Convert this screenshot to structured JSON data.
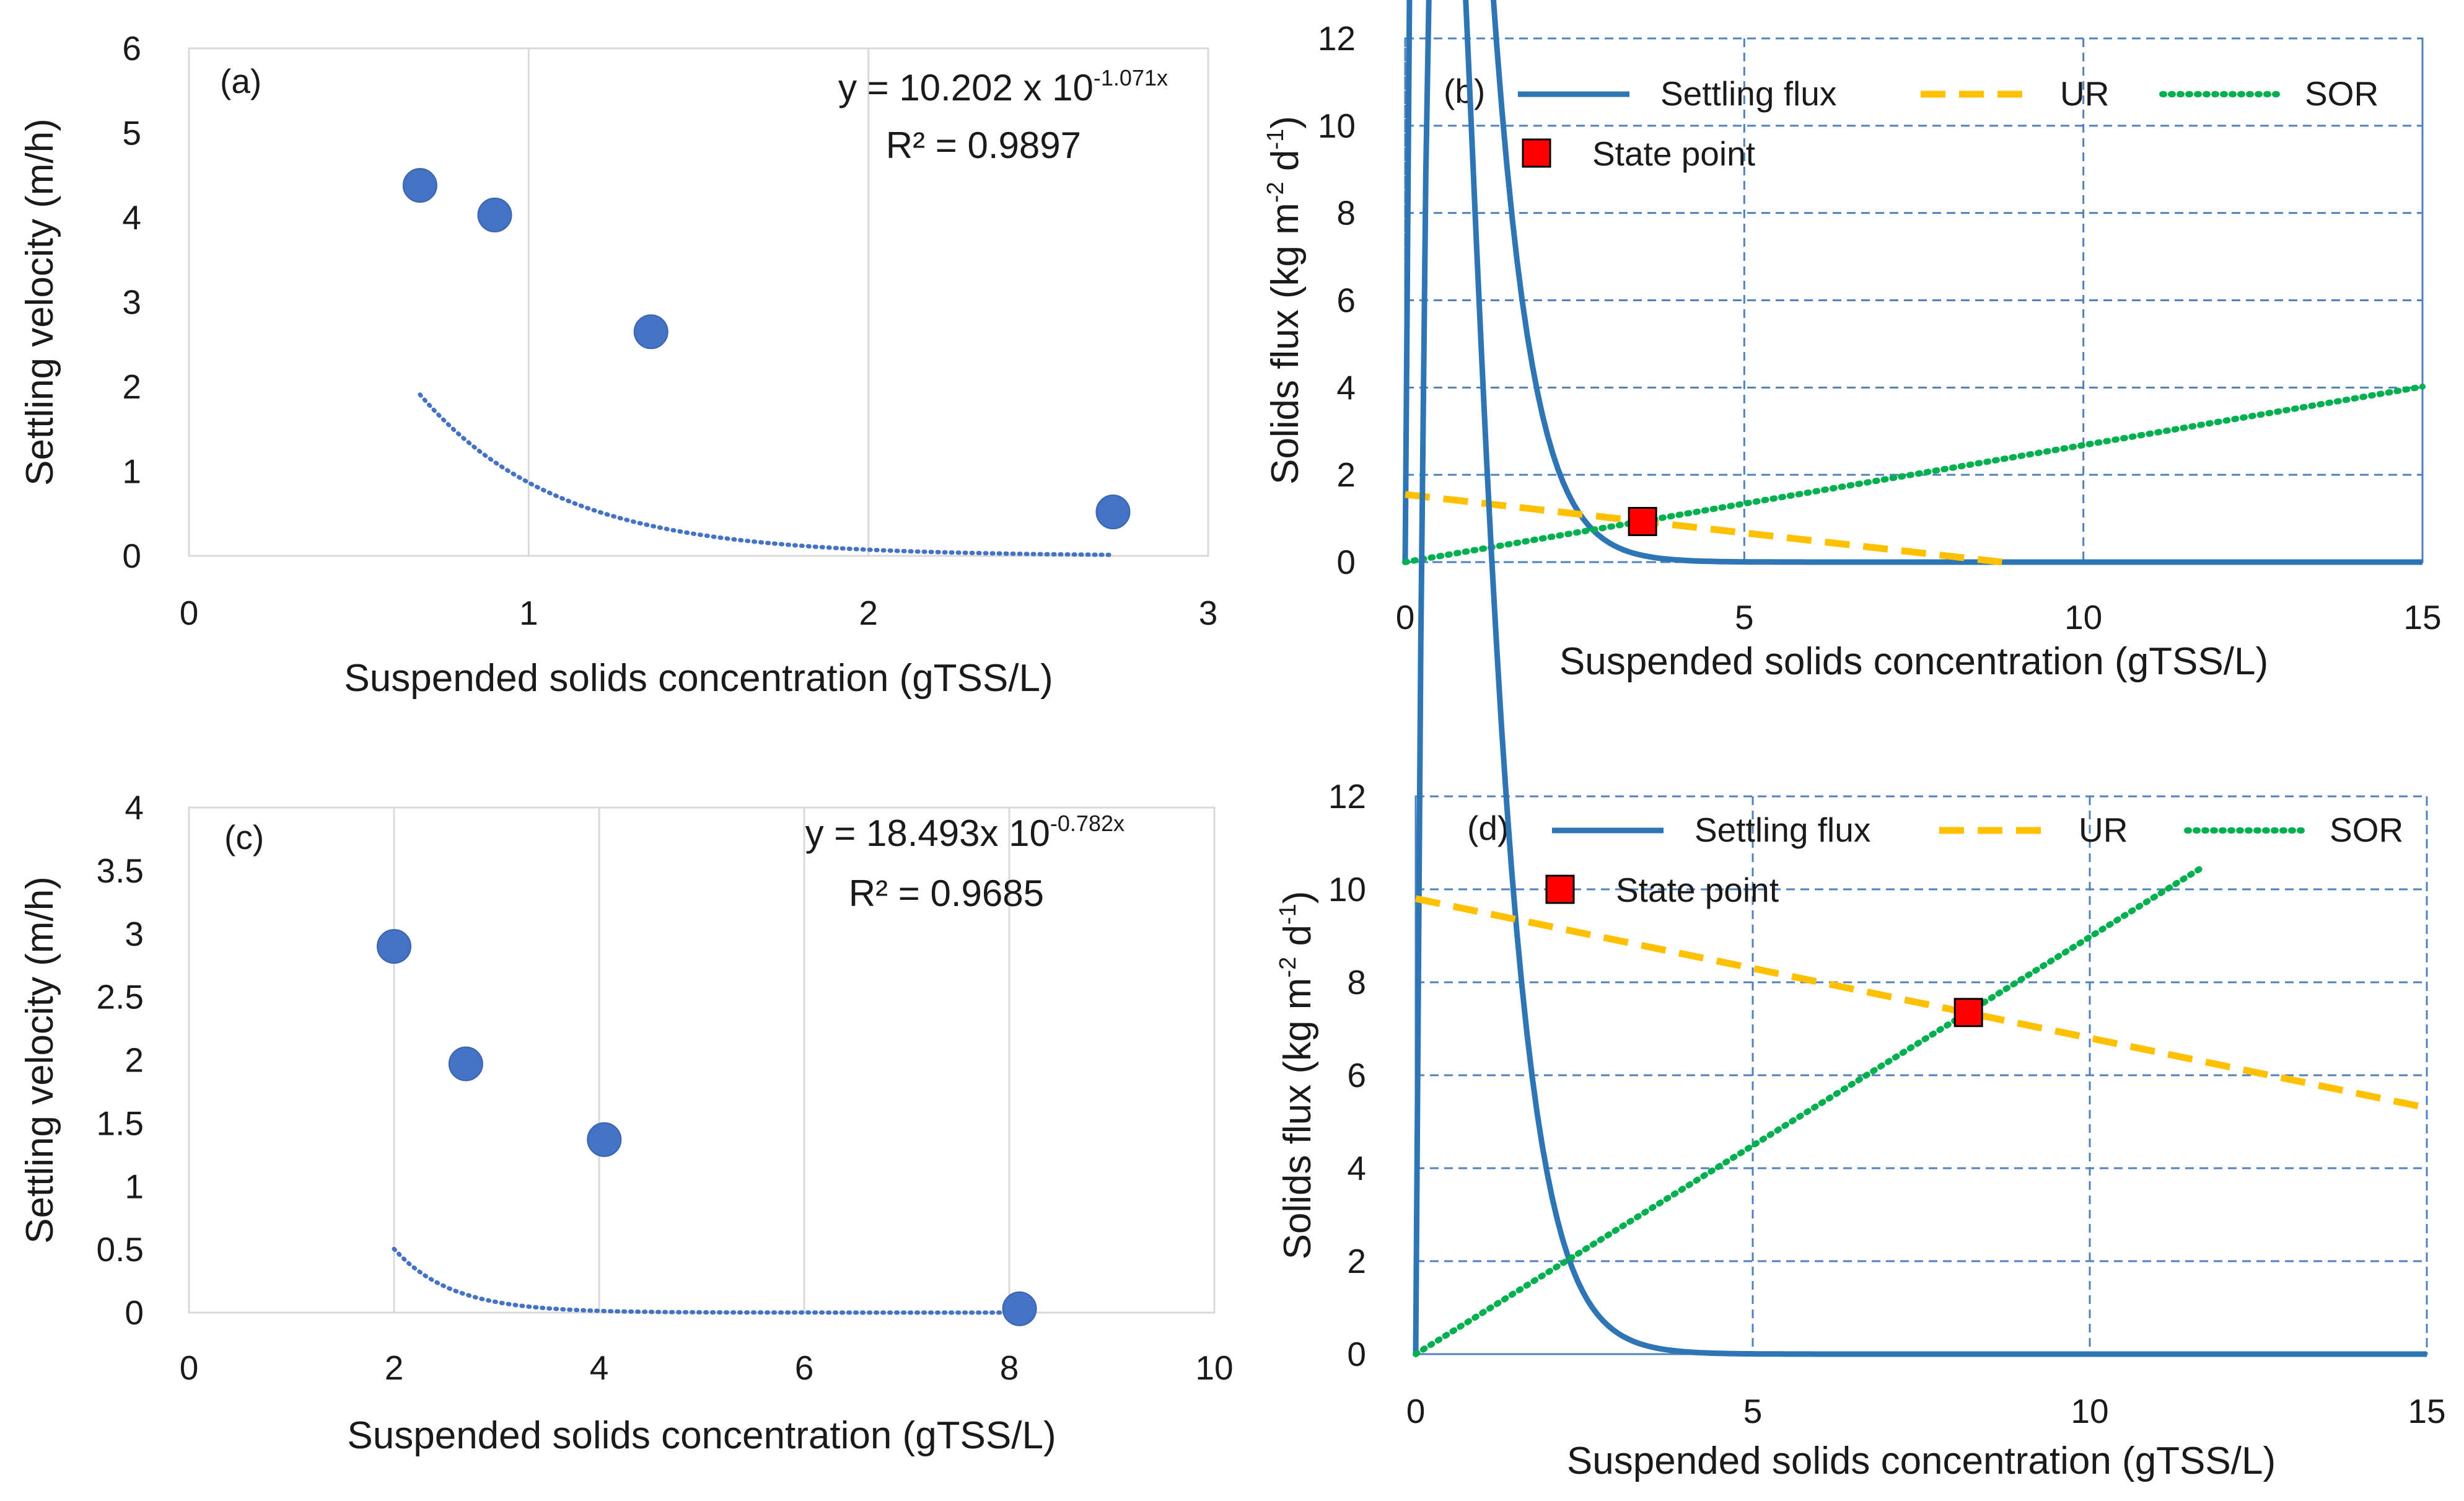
{
  "chart_data": [
    {
      "id": "a",
      "type": "scatter",
      "panel_label": "(a)",
      "xlabel": "Suspended solids concentration (gTSS/L)",
      "ylabel": "Settling velocity (m/h)",
      "xlim": [
        0,
        3
      ],
      "ylim": [
        0,
        6
      ],
      "xticks": [
        0,
        1,
        2,
        3
      ],
      "yticks": [
        0,
        1,
        2,
        3,
        4,
        5,
        6
      ],
      "grid": "vertical-only",
      "points": {
        "x": [
          0.68,
          0.9,
          1.36,
          2.72
        ],
        "y": [
          4.38,
          4.03,
          2.65,
          0.52
        ]
      },
      "trendline": {
        "type": "exponential",
        "a": 10.202,
        "b": -1.071,
        "x_range": [
          0.68,
          2.72
        ]
      },
      "equation": {
        "main": "y = 10.202 x 10",
        "exponent": "-1.071x",
        "r2": "R² = 0.9897"
      }
    },
    {
      "id": "b",
      "type": "line",
      "panel_label": "(b)",
      "xlabel": "Suspended solids concentration (gTSS/L)",
      "ylabel": "Solids flux (kg m",
      "ylabel_parts": [
        "Solids flux (kg m",
        "-2",
        " d",
        "-1",
        ")"
      ],
      "xlim": [
        0,
        15
      ],
      "ylim": [
        0,
        12
      ],
      "xticks": [
        0,
        5,
        10,
        15
      ],
      "yticks": [
        0,
        2,
        4,
        6,
        8,
        10,
        12
      ],
      "grid": "dashed",
      "legend": {
        "settling_flux": "Settling flux",
        "ur": "UR",
        "sor": "SOR",
        "state_point": "State point"
      },
      "series": [
        {
          "name": "Settling flux",
          "formula": "flux = 24*X*10.202*10^(-1.071*X)",
          "x_range": [
            0,
            15
          ]
        },
        {
          "name": "UR",
          "x": [
            0,
            8.8
          ],
          "y": [
            1.55,
            0
          ]
        },
        {
          "name": "SOR",
          "x": [
            0,
            15
          ],
          "y": [
            0,
            4.02
          ]
        }
      ],
      "state_point": {
        "x": 3.5,
        "y": 0.93
      }
    },
    {
      "id": "c",
      "type": "scatter",
      "panel_label": "(c)",
      "xlabel": "Suspended solids concentration (gTSS/L)",
      "ylabel": "Settling velocity (m/h)",
      "xlim": [
        0,
        10
      ],
      "ylim": [
        0,
        4
      ],
      "xticks": [
        0,
        2,
        4,
        6,
        8,
        10
      ],
      "yticks": [
        "0",
        "0.5",
        "1",
        "1.5",
        "2",
        "2.5",
        "3",
        "3.5",
        "4"
      ],
      "grid": "vertical-only",
      "points": {
        "x": [
          2.0,
          2.7,
          4.05,
          8.1
        ],
        "y": [
          2.9,
          1.97,
          1.37,
          0.03
        ]
      },
      "trendline": {
        "type": "exponential",
        "a": 18.493,
        "b": -0.782,
        "x_range": [
          2.0,
          8.1
        ]
      },
      "equation": {
        "main": "y = 18.493x 10",
        "exponent": "-0.782x",
        "r2": "R² = 0.9685"
      }
    },
    {
      "id": "d",
      "type": "line",
      "panel_label": "(d)",
      "xlabel": "Suspended solids concentration (gTSS/L)",
      "ylabel": "Solids flux (kg m",
      "ylabel_parts": [
        "Solids flux (kg m",
        "-2",
        " d",
        "-1",
        ")"
      ],
      "xlim": [
        0,
        15
      ],
      "ylim": [
        0,
        12
      ],
      "xticks": [
        0,
        5,
        10,
        15
      ],
      "yticks": [
        0,
        2,
        4,
        6,
        8,
        10,
        12
      ],
      "grid": "dashed",
      "legend": {
        "settling_flux": "Settling flux",
        "ur": "UR",
        "sor": "SOR",
        "state_point": "State point"
      },
      "series": [
        {
          "name": "Settling flux",
          "formula": "flux = 24*X*10.202*10^(-1.071*X)",
          "x_range": [
            0,
            15
          ]
        },
        {
          "name": "UR",
          "x": [
            0,
            15
          ],
          "y": [
            9.8,
            5.3
          ]
        },
        {
          "name": "SOR",
          "x": [
            0,
            11.7
          ],
          "y": [
            0,
            10.5
          ]
        }
      ],
      "state_point": {
        "x": 8.2,
        "y": 7.35
      }
    }
  ],
  "colors": {
    "marker": "#4472C4",
    "trend": "#4472C4",
    "flux": "#2E75B6",
    "ur": "#FFC000",
    "sor": "#00B050",
    "state_point": "#FF0000",
    "grid_solid": "#D9D9D9",
    "grid_dashed": "#4F81BD"
  }
}
